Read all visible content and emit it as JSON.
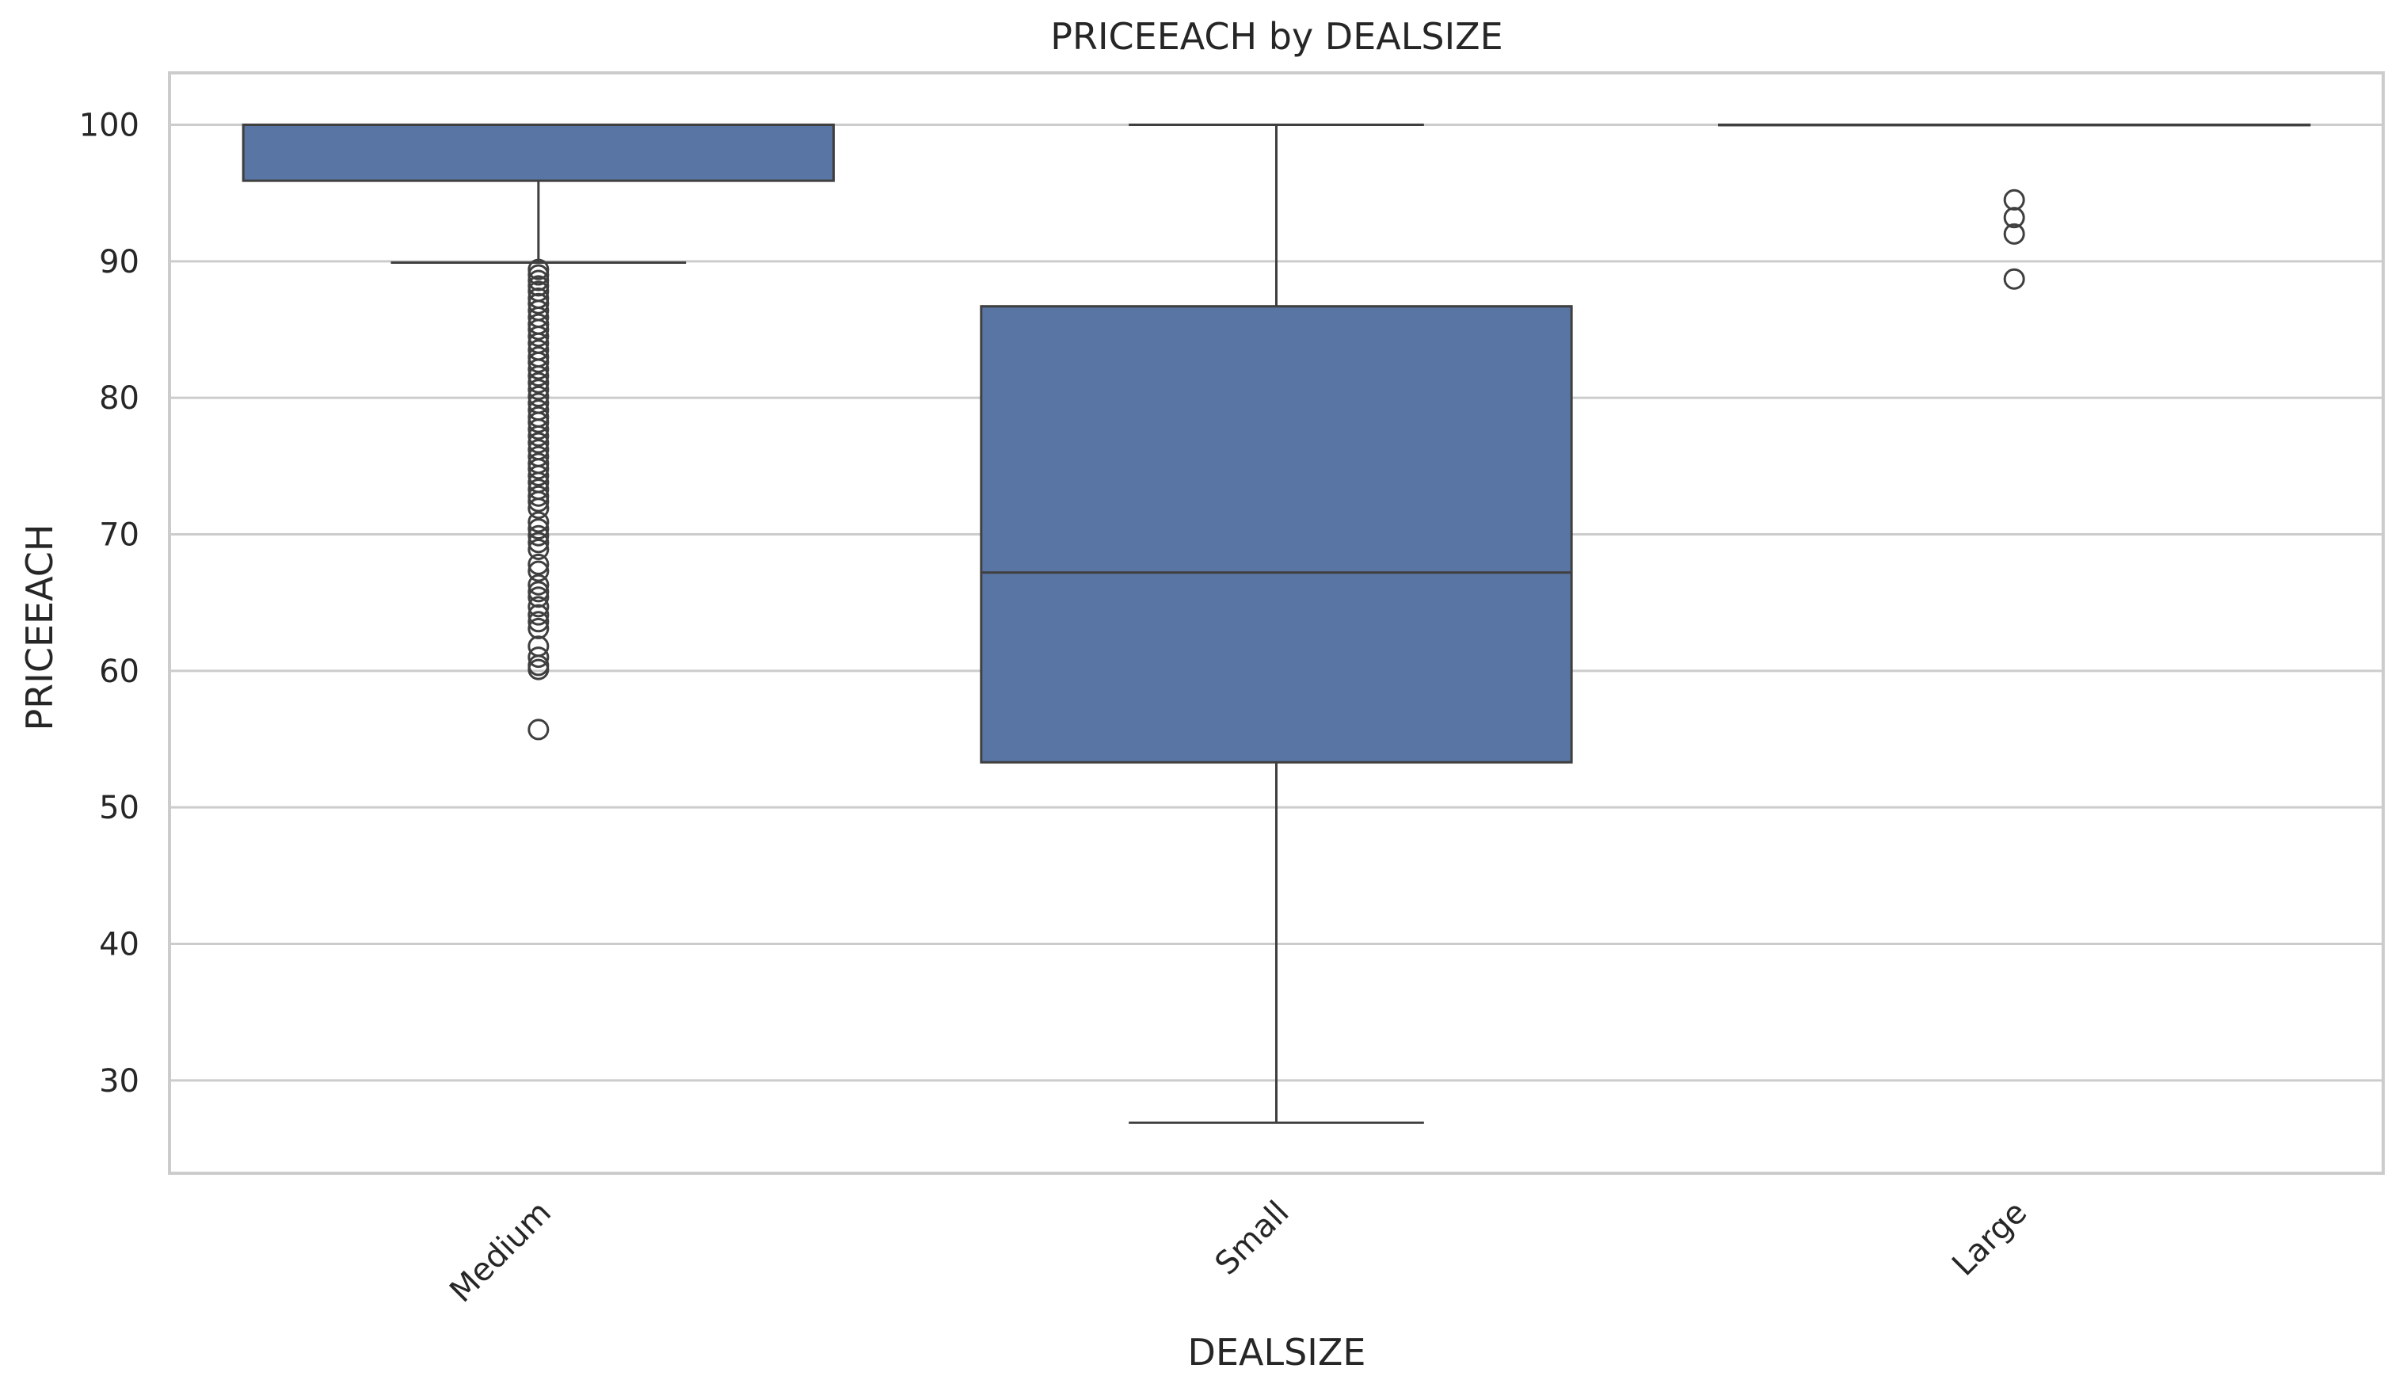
{
  "chart_data": {
    "type": "box",
    "title": "PRICEEACH by DEALSIZE",
    "xlabel": "DEALSIZE",
    "ylabel": "PRICEEACH",
    "ylim": [
      23.2,
      103.8
    ],
    "yticks": [
      30,
      40,
      50,
      60,
      70,
      80,
      90,
      100
    ],
    "grid": true,
    "categories": [
      "Medium",
      "Small",
      "Large"
    ],
    "boxes": [
      {
        "category": "Medium",
        "whisker_low": 89.9,
        "q1": 95.9,
        "median": 100,
        "q3": 100,
        "whisker_high": 100,
        "outliers": [
          89.4,
          89.0,
          88.6,
          88.2,
          87.8,
          87.3,
          86.9,
          86.4,
          85.9,
          85.4,
          85.0,
          84.5,
          84.0,
          83.5,
          83.0,
          82.6,
          82.1,
          81.6,
          81.1,
          80.6,
          80.1,
          79.6,
          79.1,
          78.6,
          78.2,
          77.7,
          77.2,
          76.7,
          76.2,
          75.7,
          75.2,
          74.8,
          74.3,
          73.8,
          73.3,
          72.8,
          72.4,
          71.9,
          70.9,
          70.4,
          69.9,
          69.4,
          68.9,
          67.8,
          67.3,
          66.3,
          65.8,
          65.4,
          64.7,
          64.1,
          63.6,
          63.1,
          61.8,
          61.0,
          60.4,
          60.1,
          55.7
        ]
      },
      {
        "category": "Small",
        "whisker_low": 26.9,
        "q1": 53.3,
        "median": 67.2,
        "q3": 86.7,
        "whisker_high": 100,
        "outliers": []
      },
      {
        "category": "Large",
        "whisker_low": 100,
        "q1": 100,
        "median": 100,
        "q3": 100,
        "whisker_high": 100,
        "outliers": [
          94.5,
          93.2,
          92.0,
          88.7
        ]
      }
    ],
    "colors": {
      "box_fill": "#5875a4",
      "line": "#3f3f3f",
      "grid": "#cccccc",
      "spine": "#cccccc",
      "text": "#262626"
    }
  }
}
